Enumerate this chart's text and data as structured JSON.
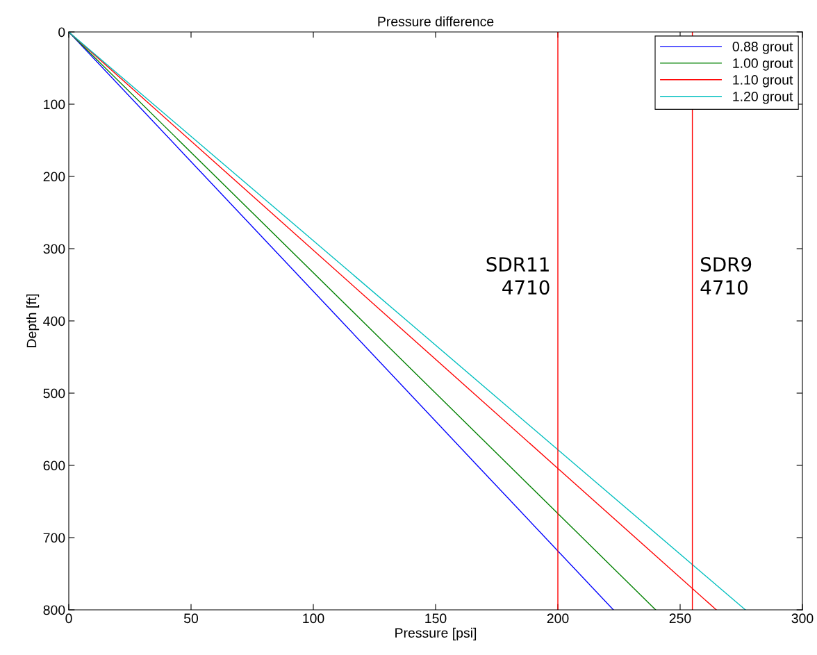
{
  "chart_data": {
    "type": "line",
    "title": "Pressure difference",
    "xlabel": "Pressure [psi]",
    "ylabel": "Depth [ft]",
    "series": [
      {
        "name": "0.88 grout",
        "color": "#0000ff",
        "x": [
          0,
          55.7,
          111.4,
          167,
          222.7
        ],
        "values": [
          0,
          200,
          400,
          600,
          800
        ]
      },
      {
        "name": "1.00 grout",
        "color": "#008000",
        "x": [
          0,
          60,
          120,
          180,
          240
        ],
        "values": [
          0,
          200,
          400,
          600,
          800
        ]
      },
      {
        "name": "1.10 grout",
        "color": "#ff0000",
        "x": [
          0,
          66.2,
          132.4,
          198.6,
          264.8
        ],
        "values": [
          0,
          200,
          400,
          600,
          800
        ]
      },
      {
        "name": "1.20 grout",
        "color": "#00bfbf",
        "x": [
          0,
          69.2,
          138.4,
          207.5,
          276.7
        ],
        "values": [
          0,
          200,
          400,
          600,
          800
        ]
      }
    ],
    "ref_lines": [
      {
        "axis": "x",
        "value": 200,
        "label": "SDR11\n4710",
        "color": "#ff0000"
      },
      {
        "axis": "x",
        "value": 255,
        "label": "SDR9\n4710",
        "color": "#ff0000"
      }
    ],
    "xlim": [
      0,
      300
    ],
    "xticks": [
      0,
      50,
      100,
      150,
      200,
      250,
      300
    ],
    "ylim": [
      800,
      0
    ],
    "yticks": [
      0,
      100,
      200,
      300,
      400,
      500,
      600,
      700,
      800
    ],
    "grid": false,
    "legend": "top right",
    "marker": "none",
    "line_style": "solid"
  }
}
